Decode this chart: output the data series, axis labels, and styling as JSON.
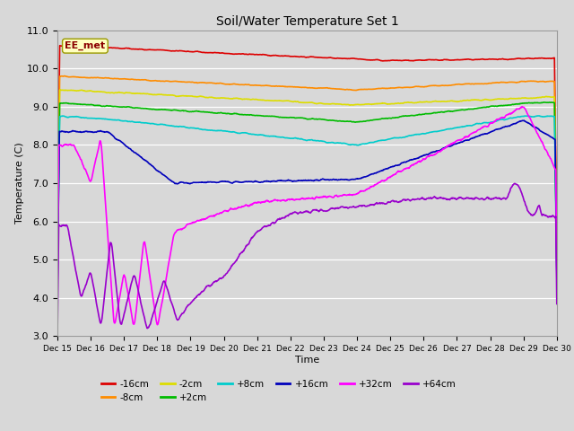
{
  "title": "Soil/Water Temperature Set 1",
  "xlabel": "Time",
  "ylabel": "Temperature (C)",
  "ylim": [
    3.0,
    11.0
  ],
  "yticks": [
    3.0,
    4.0,
    5.0,
    6.0,
    7.0,
    8.0,
    9.0,
    10.0,
    11.0
  ],
  "xlim": [
    0,
    15
  ],
  "xtick_labels": [
    "Dec 15",
    "Dec 16",
    "Dec 17",
    "Dec 18",
    "Dec 19",
    "Dec 20",
    "Dec 21",
    "Dec 22",
    "Dec 23",
    "Dec 24",
    "Dec 25",
    "Dec 26",
    "Dec 27",
    "Dec 28",
    "Dec 29",
    "Dec 30"
  ],
  "annotation_text": "EE_met",
  "annotation_color": "#8B0000",
  "annotation_bg": "#FFFFC0",
  "bg_color": "#D8D8D8",
  "plot_bg_color": "#D8D8D8",
  "series": [
    {
      "label": "-16cm",
      "color": "#DD0000"
    },
    {
      "label": "-8cm",
      "color": "#FF8C00"
    },
    {
      "label": "-2cm",
      "color": "#DDDD00"
    },
    {
      "label": "+2cm",
      "color": "#00BB00"
    },
    {
      "label": "+8cm",
      "color": "#00CCCC"
    },
    {
      "label": "+16cm",
      "color": "#0000BB"
    },
    {
      "label": "+32cm",
      "color": "#FF00FF"
    },
    {
      "label": "+64cm",
      "color": "#9900CC"
    }
  ]
}
